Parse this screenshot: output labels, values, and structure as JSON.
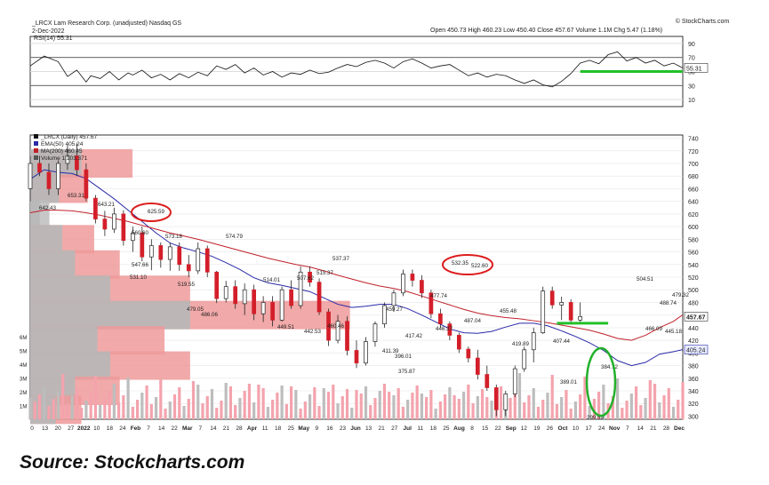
{
  "header": {
    "symbol_line": "_LRCX Lam Research Corp. (unadjusted) Nasdaq GS",
    "date": "2-Dec-2022",
    "ohlc": "Open 450.73  High 460.23  Low 450.40  Close 457.67  Volume 1.1M  Chg 5.47 (1.18%)",
    "brand": "© StockCharts.com"
  },
  "rsi": {
    "legend": "RSI(14) 55.31",
    "ticks": [
      "90",
      "70",
      "50",
      "30",
      "10"
    ],
    "value_label": "55.31",
    "ylim": [
      0,
      100
    ],
    "levels": [
      30,
      70
    ],
    "series": [
      [
        0,
        58
      ],
      [
        3,
        72
      ],
      [
        6,
        64
      ],
      [
        8,
        43
      ],
      [
        10,
        52
      ],
      [
        12,
        35
      ],
      [
        13,
        44
      ],
      [
        15,
        40
      ],
      [
        17,
        50
      ],
      [
        19,
        38
      ],
      [
        21,
        48
      ],
      [
        22,
        45
      ],
      [
        24,
        52
      ],
      [
        26,
        41
      ],
      [
        28,
        46
      ],
      [
        30,
        38
      ],
      [
        32,
        47
      ],
      [
        34,
        41
      ],
      [
        36,
        49
      ],
      [
        38,
        44
      ],
      [
        40,
        58
      ],
      [
        42,
        53
      ],
      [
        44,
        60
      ],
      [
        46,
        48
      ],
      [
        48,
        55
      ],
      [
        50,
        45
      ],
      [
        52,
        50
      ],
      [
        54,
        42
      ],
      [
        56,
        48
      ],
      [
        58,
        46
      ],
      [
        60,
        52
      ],
      [
        62,
        47
      ],
      [
        64,
        49
      ],
      [
        66,
        55
      ],
      [
        68,
        60
      ],
      [
        70,
        57
      ],
      [
        72,
        63
      ],
      [
        74,
        66
      ],
      [
        76,
        62
      ],
      [
        78,
        55
      ],
      [
        80,
        64
      ],
      [
        82,
        68
      ],
      [
        84,
        62
      ],
      [
        86,
        55
      ],
      [
        88,
        58
      ],
      [
        90,
        60
      ],
      [
        92,
        52
      ],
      [
        94,
        44
      ],
      [
        96,
        48
      ],
      [
        98,
        42
      ],
      [
        100,
        46
      ],
      [
        102,
        44
      ],
      [
        104,
        38
      ],
      [
        106,
        33
      ],
      [
        108,
        38
      ],
      [
        110,
        31
      ],
      [
        112,
        28
      ],
      [
        114,
        36
      ],
      [
        116,
        47
      ],
      [
        118,
        62
      ],
      [
        120,
        66
      ],
      [
        122,
        61
      ],
      [
        124,
        74
      ],
      [
        126,
        78
      ],
      [
        128,
        65
      ],
      [
        130,
        70
      ],
      [
        132,
        62
      ],
      [
        134,
        66
      ],
      [
        136,
        58
      ],
      [
        138,
        62
      ],
      [
        140,
        55
      ]
    ],
    "annotation_color": "#22c02a"
  },
  "main": {
    "legend": [
      "_LRCX (Daily) 457.67",
      "EMA(50) 405.24",
      "MA(200) 460.45",
      "Volume 1,103,371"
    ],
    "y_ticks": [
      "740",
      "720",
      "700",
      "680",
      "660",
      "640",
      "620",
      "600",
      "580",
      "560",
      "540",
      "520",
      "500",
      "480",
      "460",
      "440",
      "420",
      "400",
      "380",
      "360",
      "340",
      "320",
      "300"
    ],
    "price_tag": "457.67",
    "ema_tag": "405.24",
    "vol_ticks": [
      "6M",
      "5M",
      "4M",
      "3M",
      "2M",
      "1M"
    ],
    "x_labels": [
      "0",
      "13",
      "20",
      "27",
      "2022",
      "10",
      "18",
      "24",
      "Feb",
      "7",
      "14",
      "22",
      "Mar",
      "7",
      "14",
      "21",
      "28",
      "Apr",
      "11",
      "18",
      "25",
      "May",
      "9",
      "16",
      "23",
      "Jun",
      "13",
      "21",
      "27",
      "Jul",
      "11",
      "18",
      "25",
      "Aug",
      "8",
      "15",
      "22",
      "Sep",
      "12",
      "19",
      "26",
      "Oct",
      "10",
      "17",
      "24",
      "Nov",
      "7",
      "14",
      "21",
      "28",
      "Dec"
    ],
    "annotations": [
      "653.31",
      "642.43",
      "643.21",
      "625.59",
      "560.60",
      "573.18",
      "547.66",
      "531.10",
      "519.55",
      "574.79",
      "479.05",
      "486.06",
      "514.01",
      "507.62",
      "515.37",
      "537.37",
      "449.51",
      "442.53",
      "460.46",
      "459.27",
      "477.74",
      "411.39",
      "417.42",
      "396.01",
      "375.87",
      "446.37",
      "532.35",
      "522.60",
      "487.04",
      "455.48",
      "419.89",
      "407.44",
      "389.01",
      "384.72",
      "504.51",
      "488.74",
      "479.32",
      "299.59",
      "466.09",
      "445.18"
    ],
    "circle_color": "#dd1c1c",
    "green_circle_color": "#22b02a"
  },
  "chart_data": {
    "type": "line",
    "title": "_LRCX (Daily) 457.67",
    "xlabel": "",
    "ylabel": "",
    "ylim": [
      295,
      745
    ],
    "x": [
      0,
      3,
      6,
      9,
      12,
      15,
      18,
      21,
      24,
      27,
      30,
      33,
      36,
      39,
      42,
      45,
      48,
      51,
      54,
      57,
      60,
      63,
      66,
      69,
      72,
      75,
      78,
      81,
      84,
      87,
      90,
      93,
      96,
      99,
      102,
      105,
      108,
      111,
      114,
      117,
      120,
      123,
      126,
      129,
      132,
      135,
      138,
      140
    ],
    "series": [
      {
        "name": "_LRCX (Daily)",
        "values": [
          650,
          700,
          690,
          712,
          690,
          640,
          600,
          578,
          565,
          548,
          531,
          560,
          575,
          548,
          520,
          500,
          479,
          490,
          512,
          507,
          500,
          455,
          449,
          468,
          515,
          537,
          520,
          468,
          412,
          396,
          380,
          418,
          446,
          478,
          532,
          526,
          487,
          455,
          419,
          407,
          389,
          358,
          305,
          350,
          408,
          500,
          480,
          457.67
        ]
      },
      {
        "name": "EMA(50)",
        "values": [
          675,
          690,
          686,
          684,
          676,
          660,
          644,
          626,
          608,
          590,
          574,
          566,
          560,
          553,
          543,
          532,
          519,
          511,
          507,
          502,
          497,
          487,
          477,
          472,
          474,
          477,
          477,
          470,
          460,
          449,
          438,
          432,
          431,
          434,
          441,
          447,
          447,
          443,
          435,
          426,
          416,
          404,
          388,
          380,
          385,
          398,
          402,
          405.24
        ]
      },
      {
        "name": "MA(200)",
        "values": [
          622,
          626,
          626,
          625,
          622,
          618,
          613,
          608,
          602,
          596,
          590,
          585,
          580,
          574,
          568,
          562,
          556,
          550,
          545,
          540,
          536,
          530,
          523,
          517,
          511,
          506,
          502,
          497,
          490,
          483,
          476,
          469,
          463,
          459,
          456,
          454,
          451,
          448,
          444,
          440,
          436,
          430,
          423,
          420,
          428,
          440,
          450,
          460.45
        ]
      }
    ],
    "candles": [
      {
        "x": 0,
        "o": 660,
        "h": 712,
        "l": 640,
        "c": 700
      },
      {
        "x": 2,
        "o": 700,
        "h": 712,
        "l": 680,
        "c": 686
      },
      {
        "x": 4,
        "o": 686,
        "h": 700,
        "l": 650,
        "c": 660
      },
      {
        "x": 6,
        "o": 660,
        "h": 705,
        "l": 650,
        "c": 700
      },
      {
        "x": 8,
        "o": 700,
        "h": 730,
        "l": 690,
        "c": 712
      },
      {
        "x": 10,
        "o": 712,
        "h": 732,
        "l": 680,
        "c": 690
      },
      {
        "x": 12,
        "o": 690,
        "h": 700,
        "l": 640,
        "c": 645
      },
      {
        "x": 14,
        "o": 645,
        "h": 650,
        "l": 605,
        "c": 612
      },
      {
        "x": 16,
        "o": 612,
        "h": 625,
        "l": 585,
        "c": 596
      },
      {
        "x": 18,
        "o": 596,
        "h": 630,
        "l": 590,
        "c": 620
      },
      {
        "x": 20,
        "o": 620,
        "h": 626,
        "l": 570,
        "c": 578
      },
      {
        "x": 22,
        "o": 578,
        "h": 600,
        "l": 560,
        "c": 590
      },
      {
        "x": 24,
        "o": 590,
        "h": 600,
        "l": 545,
        "c": 552
      },
      {
        "x": 26,
        "o": 552,
        "h": 580,
        "l": 531,
        "c": 570
      },
      {
        "x": 28,
        "o": 570,
        "h": 575,
        "l": 535,
        "c": 548
      },
      {
        "x": 30,
        "o": 548,
        "h": 575,
        "l": 530,
        "c": 568
      },
      {
        "x": 32,
        "o": 568,
        "h": 575,
        "l": 530,
        "c": 540
      },
      {
        "x": 34,
        "o": 540,
        "h": 555,
        "l": 520,
        "c": 530
      },
      {
        "x": 36,
        "o": 530,
        "h": 575,
        "l": 525,
        "c": 565
      },
      {
        "x": 38,
        "o": 565,
        "h": 570,
        "l": 520,
        "c": 528
      },
      {
        "x": 40,
        "o": 528,
        "h": 530,
        "l": 479,
        "c": 486
      },
      {
        "x": 42,
        "o": 486,
        "h": 514,
        "l": 480,
        "c": 505
      },
      {
        "x": 44,
        "o": 505,
        "h": 515,
        "l": 470,
        "c": 478
      },
      {
        "x": 46,
        "o": 478,
        "h": 510,
        "l": 460,
        "c": 500
      },
      {
        "x": 48,
        "o": 500,
        "h": 508,
        "l": 452,
        "c": 462
      },
      {
        "x": 50,
        "o": 462,
        "h": 490,
        "l": 449,
        "c": 480
      },
      {
        "x": 52,
        "o": 480,
        "h": 490,
        "l": 442,
        "c": 452
      },
      {
        "x": 54,
        "o": 452,
        "h": 505,
        "l": 450,
        "c": 500
      },
      {
        "x": 56,
        "o": 500,
        "h": 515,
        "l": 470,
        "c": 475
      },
      {
        "x": 58,
        "o": 475,
        "h": 537,
        "l": 470,
        "c": 528
      },
      {
        "x": 60,
        "o": 528,
        "h": 537,
        "l": 505,
        "c": 512
      },
      {
        "x": 62,
        "o": 512,
        "h": 518,
        "l": 460,
        "c": 465
      },
      {
        "x": 64,
        "o": 465,
        "h": 470,
        "l": 411,
        "c": 420
      },
      {
        "x": 66,
        "o": 420,
        "h": 460,
        "l": 415,
        "c": 450
      },
      {
        "x": 68,
        "o": 450,
        "h": 458,
        "l": 396,
        "c": 404
      },
      {
        "x": 70,
        "o": 404,
        "h": 420,
        "l": 376,
        "c": 384
      },
      {
        "x": 72,
        "o": 384,
        "h": 425,
        "l": 380,
        "c": 418
      },
      {
        "x": 74,
        "o": 418,
        "h": 450,
        "l": 410,
        "c": 446
      },
      {
        "x": 76,
        "o": 446,
        "h": 480,
        "l": 440,
        "c": 475
      },
      {
        "x": 78,
        "o": 475,
        "h": 500,
        "l": 465,
        "c": 495
      },
      {
        "x": 80,
        "o": 495,
        "h": 532,
        "l": 490,
        "c": 525
      },
      {
        "x": 82,
        "o": 525,
        "h": 532,
        "l": 505,
        "c": 515
      },
      {
        "x": 84,
        "o": 515,
        "h": 523,
        "l": 487,
        "c": 495
      },
      {
        "x": 86,
        "o": 495,
        "h": 500,
        "l": 455,
        "c": 462
      },
      {
        "x": 88,
        "o": 462,
        "h": 470,
        "l": 440,
        "c": 446
      },
      {
        "x": 90,
        "o": 446,
        "h": 450,
        "l": 420,
        "c": 428
      },
      {
        "x": 92,
        "o": 428,
        "h": 432,
        "l": 400,
        "c": 406
      },
      {
        "x": 94,
        "o": 406,
        "h": 410,
        "l": 385,
        "c": 392
      },
      {
        "x": 96,
        "o": 392,
        "h": 405,
        "l": 358,
        "c": 366
      },
      {
        "x": 98,
        "o": 366,
        "h": 380,
        "l": 340,
        "c": 345
      },
      {
        "x": 100,
        "o": 345,
        "h": 350,
        "l": 300,
        "c": 310
      },
      {
        "x": 102,
        "o": 310,
        "h": 340,
        "l": 300,
        "c": 335
      },
      {
        "x": 104,
        "o": 335,
        "h": 380,
        "l": 330,
        "c": 375
      },
      {
        "x": 106,
        "o": 375,
        "h": 410,
        "l": 370,
        "c": 405
      },
      {
        "x": 108,
        "o": 405,
        "h": 440,
        "l": 385,
        "c": 432
      },
      {
        "x": 110,
        "o": 432,
        "h": 505,
        "l": 430,
        "c": 498
      },
      {
        "x": 112,
        "o": 498,
        "h": 505,
        "l": 470,
        "c": 476
      },
      {
        "x": 114,
        "o": 476,
        "h": 489,
        "l": 452,
        "c": 480
      },
      {
        "x": 116,
        "o": 480,
        "h": 485,
        "l": 446,
        "c": 452
      },
      {
        "x": 118,
        "o": 452,
        "h": 480,
        "l": 448,
        "c": 457.67
      }
    ],
    "volume_by_price": [
      {
        "price": 700,
        "length": 0.32,
        "color": "#ef9a9a"
      },
      {
        "price": 660,
        "length": 0.18,
        "color": "#ef9a9a"
      },
      {
        "price": 620,
        "length": 0.06,
        "color": "#bdbdbd"
      },
      {
        "price": 580,
        "length": 0.2,
        "color": "#ef9a9a"
      },
      {
        "price": 540,
        "length": 0.28,
        "color": "#ef9a9a"
      },
      {
        "price": 500,
        "length": 0.5,
        "color": "#ef9a9a"
      },
      {
        "price": 460,
        "length": 1.0,
        "color": "#ef9a9a"
      },
      {
        "price": 420,
        "length": 0.42,
        "color": "#ef9a9a"
      },
      {
        "price": 380,
        "length": 0.5,
        "color": "#ef9a9a"
      },
      {
        "price": 340,
        "length": 0.28,
        "color": "#ef9a9a"
      },
      {
        "price": 310,
        "length": 0.16,
        "color": "#ef9a9a"
      }
    ],
    "grid": true,
    "legend_position": "top-left"
  },
  "caption": "Source: Stockcharts.com"
}
